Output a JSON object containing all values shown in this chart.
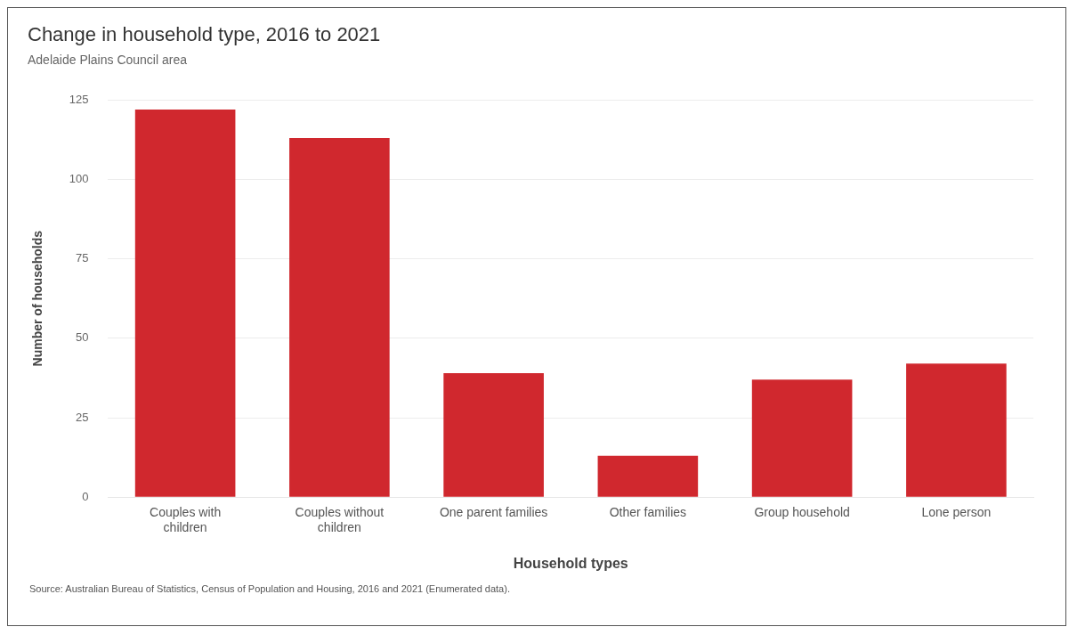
{
  "chart_data": {
    "type": "bar",
    "title": "Change in household type, 2016 to 2021",
    "subtitle": "Adelaide Plains Council area",
    "xlabel": "Household types",
    "ylabel": "Number of households",
    "categories": [
      "Couples with children",
      "Couples without children",
      "One parent families",
      "Other families",
      "Group household",
      "Lone person"
    ],
    "values": [
      122,
      113,
      39,
      13,
      37,
      42
    ],
    "color": "#d0282e",
    "ylim": [
      0,
      125
    ],
    "yticks": [
      0,
      25,
      50,
      75,
      100,
      125
    ],
    "grid": "y",
    "legend": false,
    "annotations": [
      "Source: Australian Bureau of Statistics, Census of Population and Housing, 2016 and 2021 (Enumerated data)."
    ]
  }
}
